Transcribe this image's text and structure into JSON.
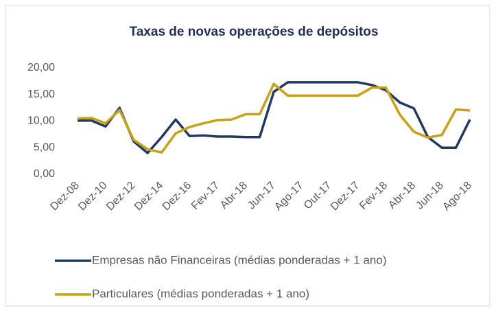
{
  "chart_data": {
    "type": "line",
    "title": "Taxas de novas operações de depósitos",
    "categories": [
      "Dez-08",
      null,
      "Dez-10",
      null,
      "Dez-12",
      null,
      "Dez-14",
      null,
      "Dez-16",
      null,
      "Fev-17",
      null,
      "Abr-18",
      null,
      "Jun-17",
      null,
      "Ago-17",
      null,
      "Out-17",
      null,
      "Dez-17",
      null,
      "Fev-18",
      null,
      "Abr-18",
      null,
      "Jun-18",
      null,
      "Ago-18"
    ],
    "series": [
      {
        "name": "Empresas não Financeiras (médias ponderadas + 1 ano)",
        "color": "#1f3864",
        "values": [
          10.1,
          10.1,
          9.0,
          12.5,
          6.2,
          4.0,
          7.0,
          10.3,
          7.2,
          7.3,
          7.1,
          7.1,
          7.0,
          7.0,
          15.5,
          17.3,
          17.3,
          17.3,
          17.3,
          17.3,
          17.3,
          16.8,
          15.8,
          13.5,
          12.4,
          7.0,
          5.0,
          5.0,
          10.3
        ]
      },
      {
        "name": "Particulares (médias ponderadas + 1 ano)",
        "color": "#c9a012",
        "values": [
          10.5,
          10.6,
          9.6,
          12.1,
          6.5,
          4.7,
          4.1,
          7.7,
          8.9,
          9.6,
          10.2,
          10.3,
          11.3,
          11.3,
          17.0,
          14.8,
          14.8,
          14.8,
          14.8,
          14.8,
          14.8,
          16.3,
          16.3,
          11.2,
          8.0,
          6.9,
          7.4,
          12.2,
          12.0
        ]
      }
    ],
    "ylim": [
      0,
      20
    ],
    "yticks": [
      {
        "value": 0,
        "label": "0,00"
      },
      {
        "value": 5,
        "label": "5,00"
      },
      {
        "value": 10,
        "label": "10,00"
      },
      {
        "value": 15,
        "label": "15,00"
      },
      {
        "value": 20,
        "label": "20,00"
      }
    ],
    "grid": false
  }
}
